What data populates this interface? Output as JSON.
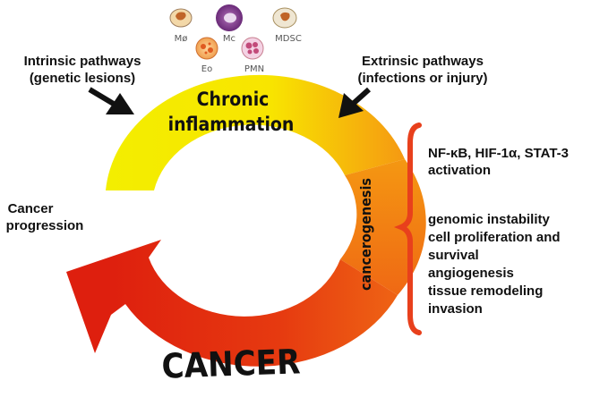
{
  "labels": {
    "intrinsic": [
      "Intrinsic pathways",
      "(genetic lesions)"
    ],
    "extrinsic": [
      "Extrinsic pathways",
      "(infections or injury)"
    ],
    "chronic": [
      "Chronic",
      "inflammation"
    ],
    "cancerogenesis": "cancerogenesis",
    "cancer": "CANCER",
    "progression": [
      "Cancer",
      "progression"
    ],
    "activation": [
      "NF-κB, HIF-1α, STAT-3",
      "activation"
    ],
    "effects": [
      "genomic instability",
      "cell proliferation and",
      "survival",
      "angiogenesis",
      "tissue remodeling",
      "invasion"
    ]
  },
  "cells": [
    {
      "label": "Mø",
      "icon": "macrophage-icon"
    },
    {
      "label": "Mc",
      "icon": "mast-cell-icon"
    },
    {
      "label": "MDSC",
      "icon": "mdsc-icon"
    },
    {
      "label": "Eo",
      "icon": "eosinophil-icon"
    },
    {
      "label": "PMN",
      "icon": "neutrophil-icon"
    }
  ],
  "colors": {
    "yellow": "#f5ef00",
    "orange": "#f49a10",
    "red": "#e02210",
    "brace": "#e8401c",
    "arrow": "#111111"
  }
}
